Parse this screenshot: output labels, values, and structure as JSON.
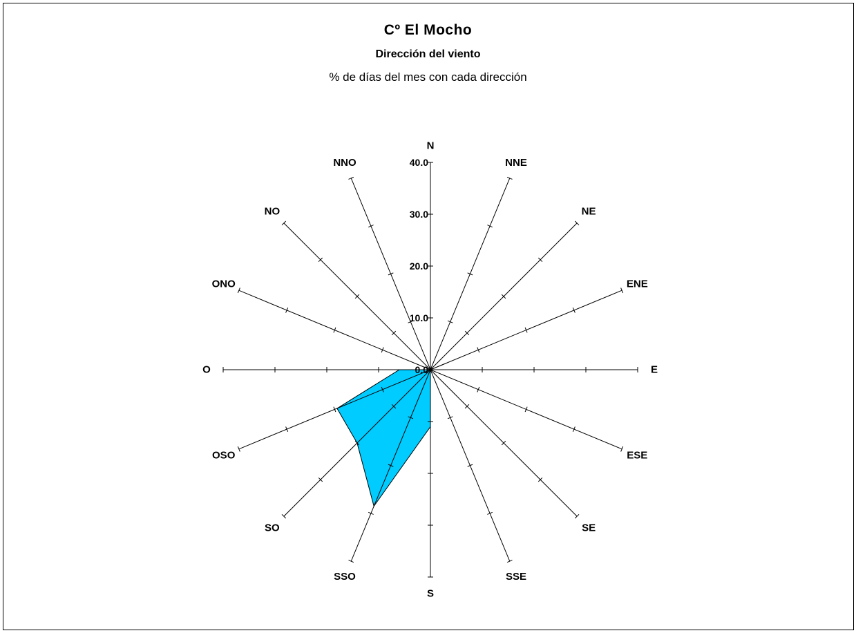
{
  "chart_data": {
    "type": "radar",
    "title": "Cº El Mocho",
    "subtitle": "Dirección del viento",
    "note": "% de días del mes con cada dirección",
    "directions": [
      "N",
      "NNE",
      "NE",
      "ENE",
      "E",
      "ESE",
      "SE",
      "SSE",
      "S",
      "SSO",
      "SO",
      "OSO",
      "O",
      "ONO",
      "NO",
      "NNO"
    ],
    "values": [
      0,
      0,
      0,
      3.2,
      0,
      0,
      0,
      0,
      11,
      28.5,
      20,
      19.5,
      6,
      0,
      0,
      0
    ],
    "radial_ticks": [
      "0.0",
      "10.0",
      "20.0",
      "30.0",
      "40.0"
    ],
    "rmax": 40,
    "tick_step": 10,
    "fill_color": "#00CCFF",
    "line_color": "#000000"
  }
}
